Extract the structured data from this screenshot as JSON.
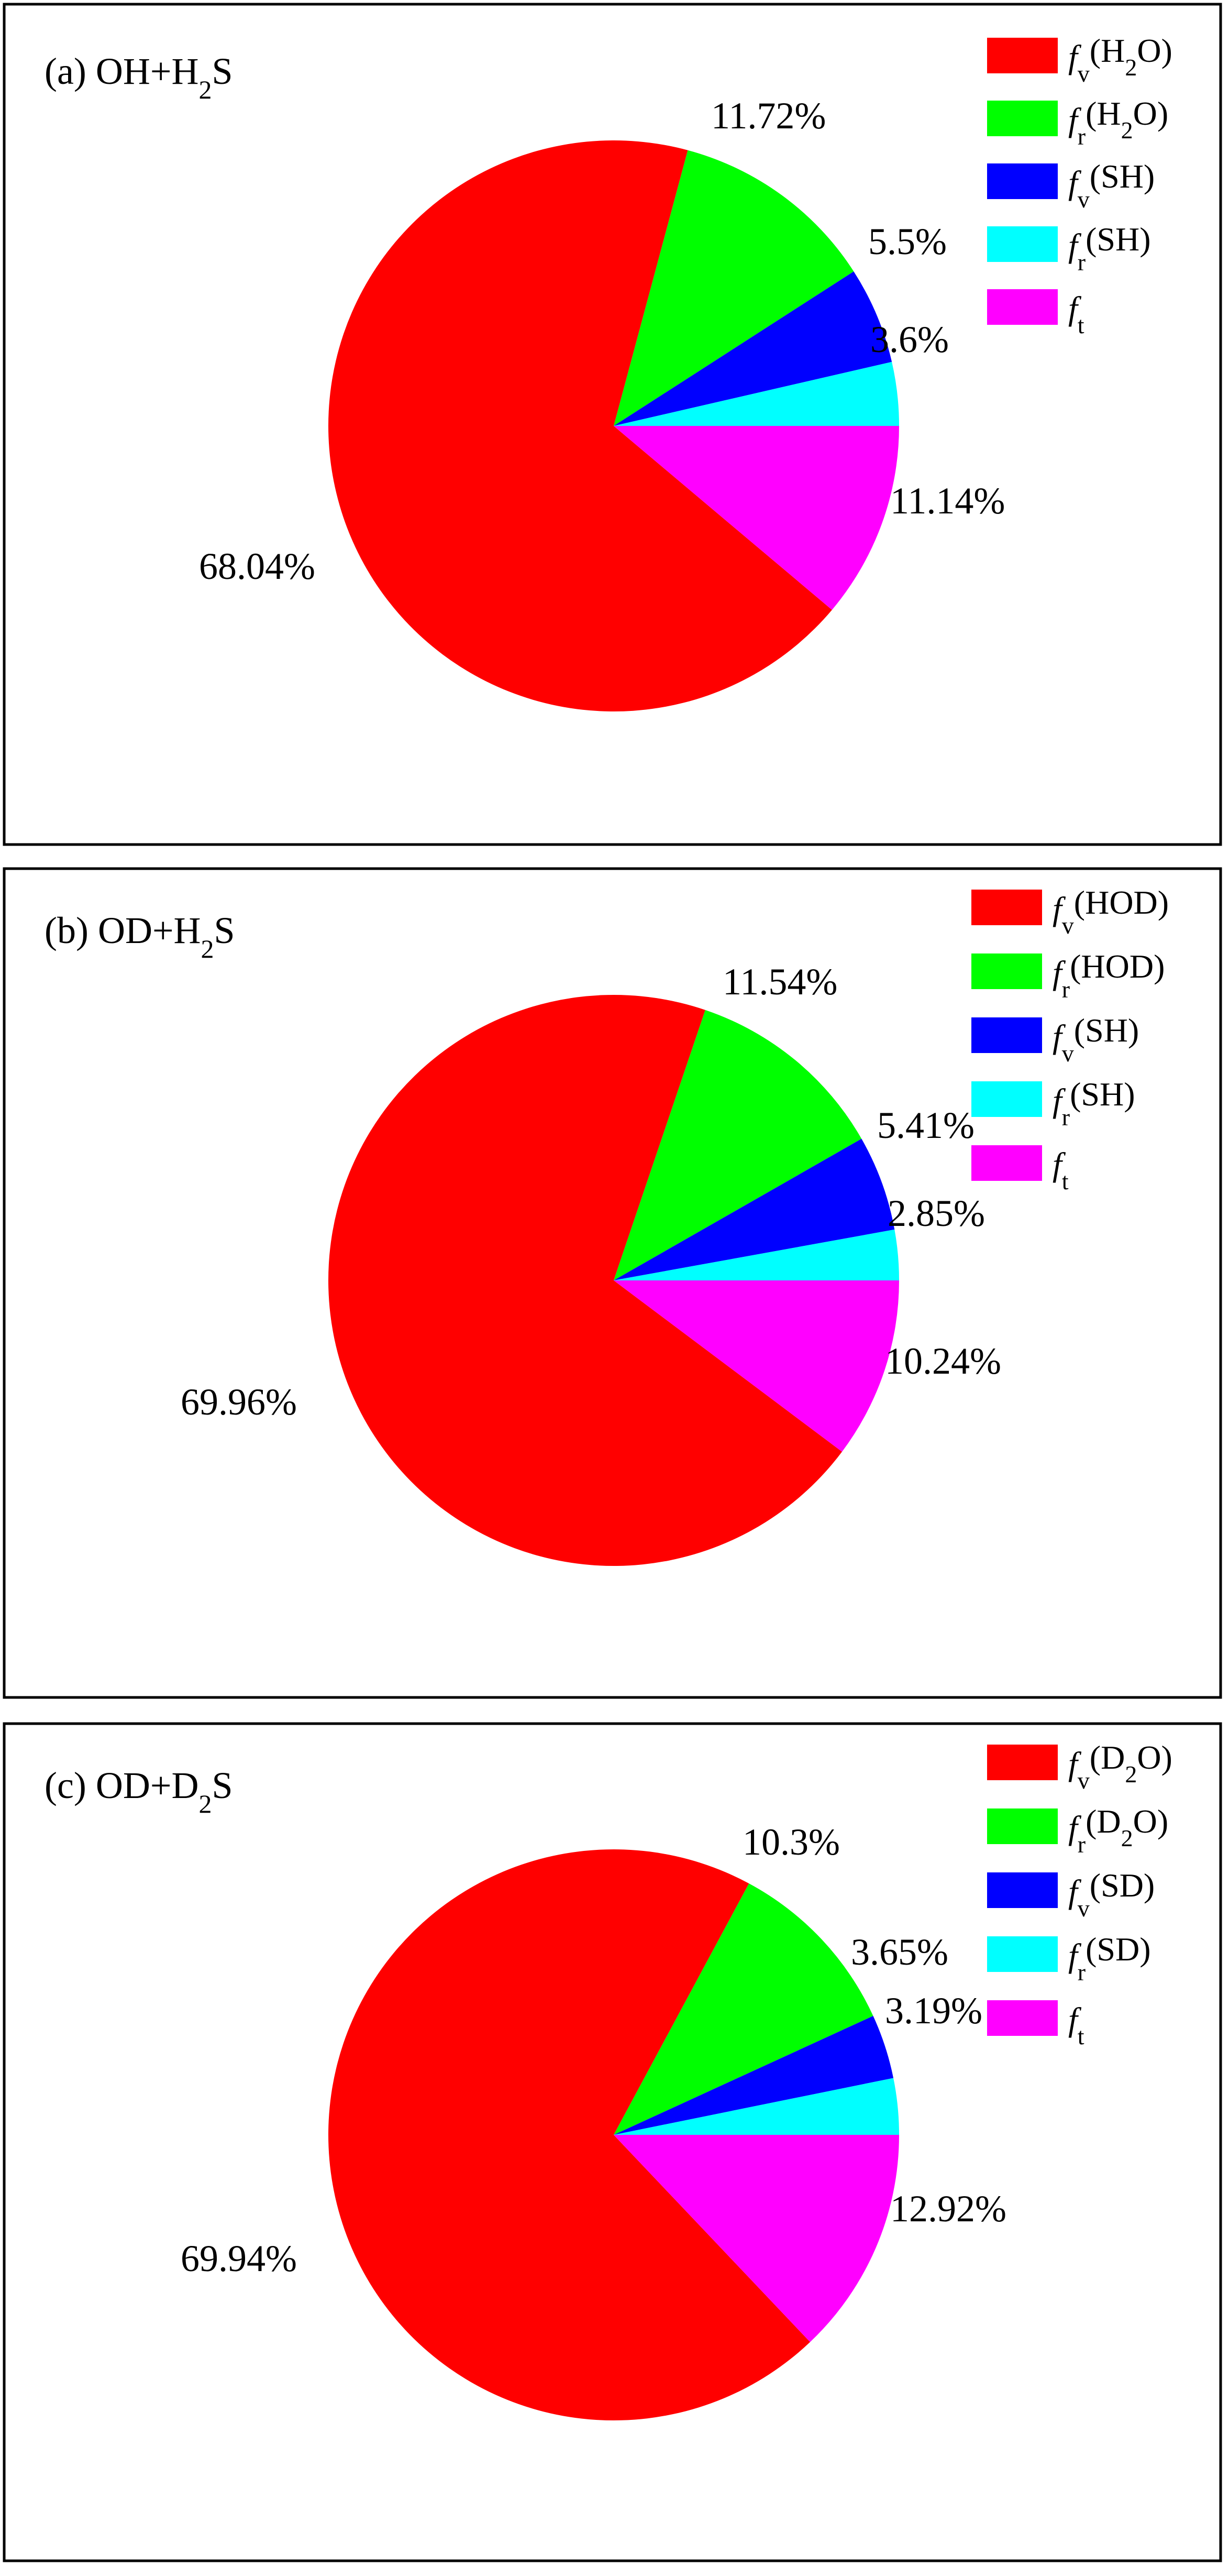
{
  "chart_data": [
    {
      "type": "pie",
      "title": "(a) OH+H",
      "title_sub": "2",
      "title_tail": "S",
      "colors": [
        "#ff0000",
        "#00ff00",
        "#0000ff",
        "#00ffff",
        "#ff00ff"
      ],
      "slices": [
        {
          "f": "f",
          "sub": "v",
          "paren": "(H",
          "paren_sub": "2",
          "paren_tail": "O)",
          "value": 68.04,
          "label": "68.04%"
        },
        {
          "f": "f",
          "sub": "r",
          "paren": "(H",
          "paren_sub": "2",
          "paren_tail": "O)",
          "value": 11.72,
          "label": "11.72%"
        },
        {
          "f": "f",
          "sub": "v",
          "paren": "(SH)",
          "paren_sub": "",
          "paren_tail": "",
          "value": 5.5,
          "label": "5.5%"
        },
        {
          "f": "f",
          "sub": "r",
          "paren": "(SH)",
          "paren_sub": "",
          "paren_tail": "",
          "value": 3.6,
          "label": "3.6%"
        },
        {
          "f": "f",
          "sub": "t",
          "paren": "",
          "paren_sub": "",
          "paren_tail": "",
          "value": 11.14,
          "label": "11.14%"
        }
      ]
    },
    {
      "type": "pie",
      "title": "(b) OD+H",
      "title_sub": "2",
      "title_tail": "S",
      "colors": [
        "#ff0000",
        "#00ff00",
        "#0000ff",
        "#00ffff",
        "#ff00ff"
      ],
      "slices": [
        {
          "f": "f",
          "sub": "v",
          "paren": "(HOD)",
          "paren_sub": "",
          "paren_tail": "",
          "value": 69.96,
          "label": "69.96%"
        },
        {
          "f": "f",
          "sub": "r",
          "paren": "(HOD)",
          "paren_sub": "",
          "paren_tail": "",
          "value": 11.54,
          "label": "11.54%"
        },
        {
          "f": "f",
          "sub": "v",
          "paren": "(SH)",
          "paren_sub": "",
          "paren_tail": "",
          "value": 5.41,
          "label": "5.41%"
        },
        {
          "f": "f",
          "sub": "r",
          "paren": "(SH)",
          "paren_sub": "",
          "paren_tail": "",
          "value": 2.85,
          "label": "2.85%"
        },
        {
          "f": "f",
          "sub": "t",
          "paren": "",
          "paren_sub": "",
          "paren_tail": "",
          "value": 10.24,
          "label": "10.24%"
        }
      ]
    },
    {
      "type": "pie",
      "title": "(c) OD+D",
      "title_sub": "2",
      "title_tail": "S",
      "colors": [
        "#ff0000",
        "#00ff00",
        "#0000ff",
        "#00ffff",
        "#ff00ff"
      ],
      "slices": [
        {
          "f": "f",
          "sub": "v",
          "paren": "(D",
          "paren_sub": "2",
          "paren_tail": "O)",
          "value": 69.94,
          "label": "69.94%"
        },
        {
          "f": "f",
          "sub": "r",
          "paren": "(D",
          "paren_sub": "2",
          "paren_tail": "O)",
          "value": 10.3,
          "label": "10.3%"
        },
        {
          "f": "f",
          "sub": "v",
          "paren": "(SD)",
          "paren_sub": "",
          "paren_tail": "",
          "value": 3.65,
          "label": "3.65%"
        },
        {
          "f": "f",
          "sub": "r",
          "paren": "(SD)",
          "paren_sub": "",
          "paren_tail": "",
          "value": 3.19,
          "label": "3.19%"
        },
        {
          "f": "f",
          "sub": "t",
          "paren": "",
          "paren_sub": "",
          "paren_tail": "",
          "value": 12.92,
          "label": "12.92%"
        }
      ]
    }
  ]
}
